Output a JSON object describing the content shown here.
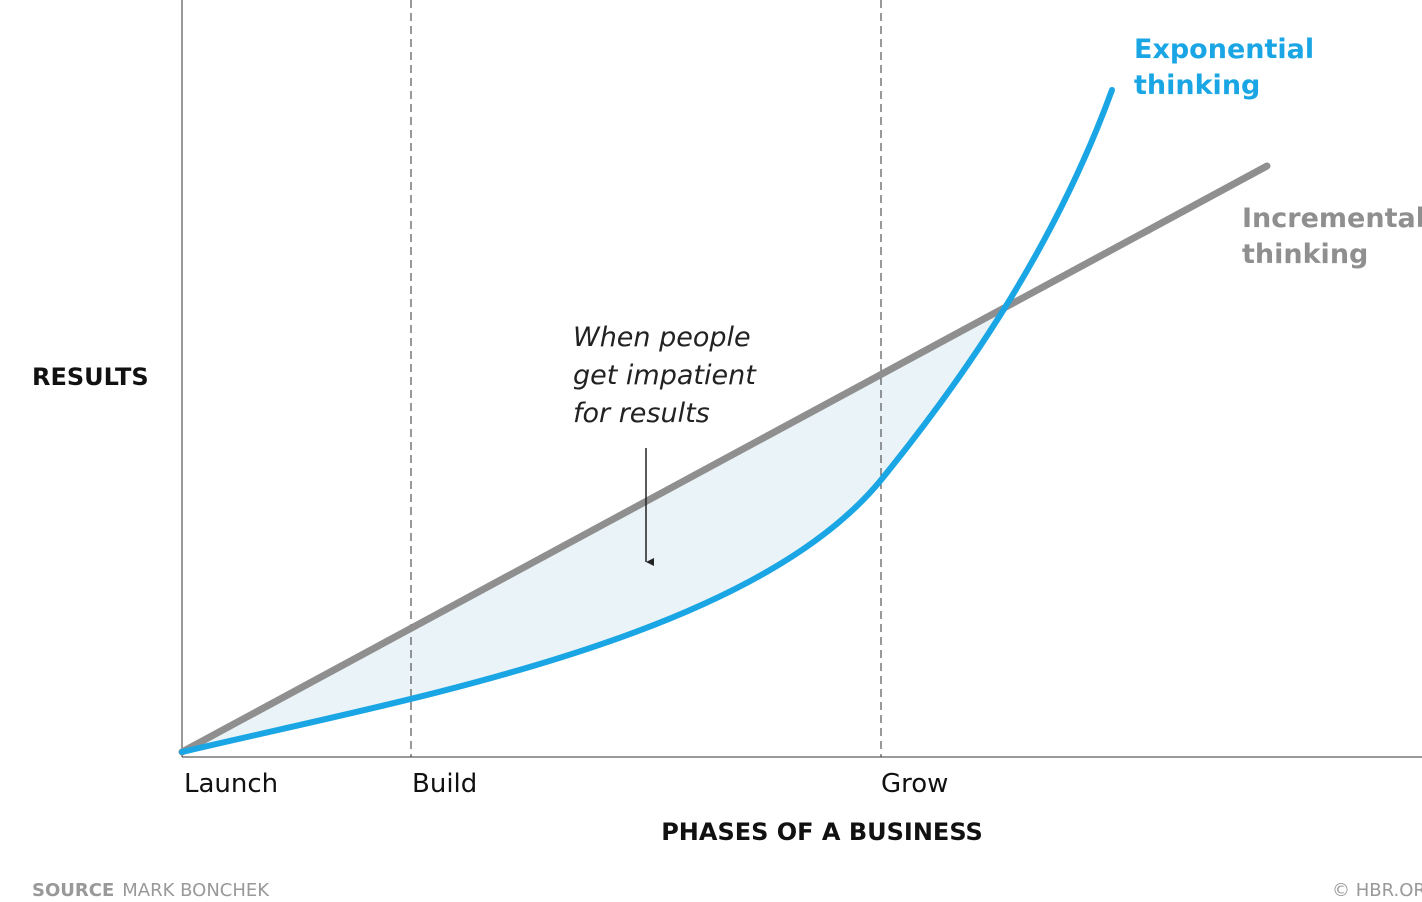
{
  "y_axis_label": "RESULTS",
  "x_axis_label": "PHASES OF A BUSINESS",
  "phases": [
    "Launch",
    "Build",
    "Grow"
  ],
  "curves": {
    "exponential": [
      "Exponential",
      "thinking"
    ],
    "incremental": [
      "Incremental",
      "thinking"
    ]
  },
  "annotation": [
    "When people",
    "get impatient",
    "for results"
  ],
  "footer": {
    "source_label": "SOURCE",
    "source": "MARK BONCHEK",
    "credit": "© HBR.ORG"
  }
}
